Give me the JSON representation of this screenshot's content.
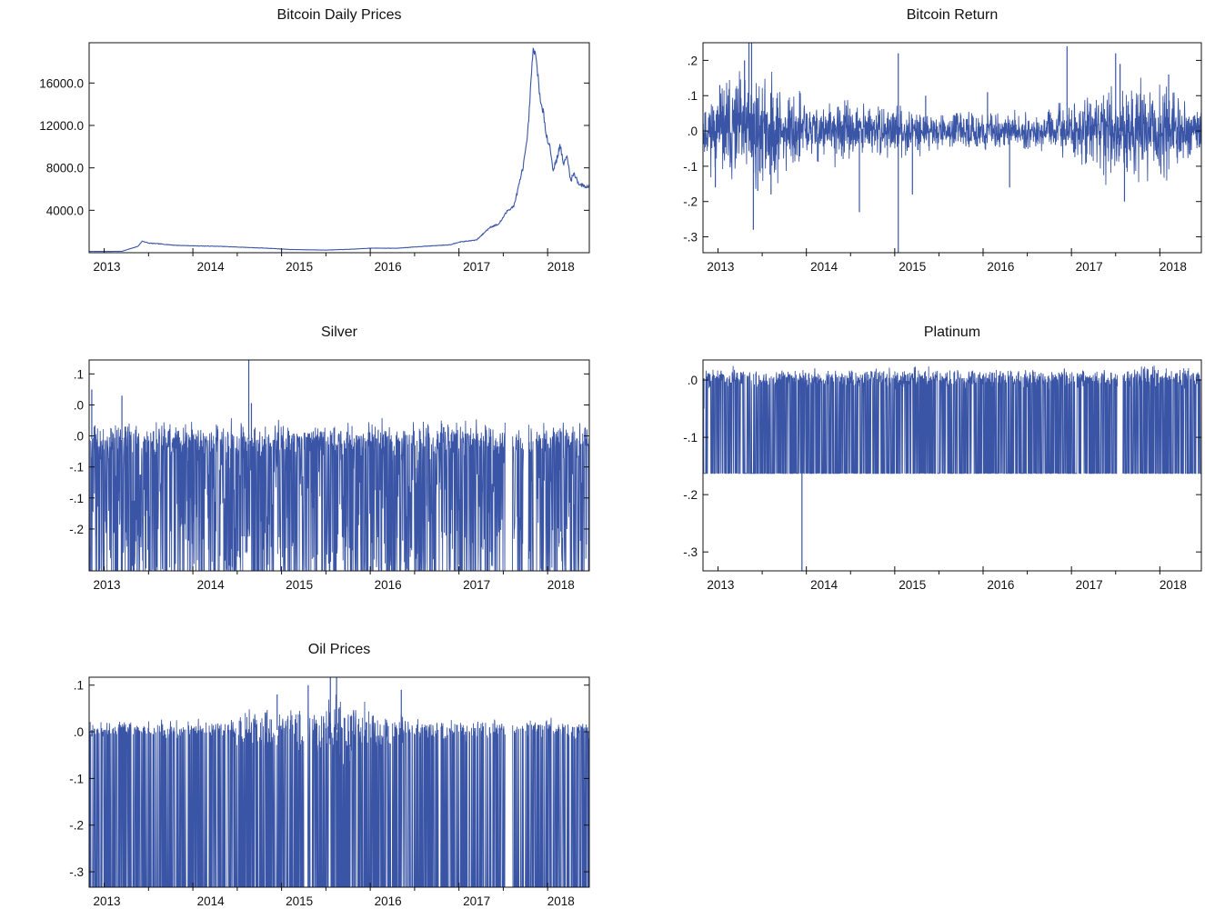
{
  "line_color": "#3a55a6",
  "chart_data": [
    {
      "id": "btc_price",
      "type": "line",
      "title": "Bitcoin Daily Prices",
      "xlabel": "",
      "ylabel": "",
      "x_range": [
        2012.83,
        2018.47
      ],
      "ylim": [
        0,
        19800
      ],
      "y_ticks": [
        4000,
        8000,
        12000,
        16000
      ],
      "y_tick_labels": [
        "4000.0",
        "8000.0",
        "12000.0",
        "16000.0"
      ],
      "x_ticks": [
        2013,
        2014,
        2015,
        2016,
        2017,
        2018
      ],
      "x_tick_labels": [
        "2013",
        "2014",
        "2015",
        "2016",
        "2017",
        "2018"
      ],
      "grid": false,
      "series": [
        {
          "mode": "path",
          "x": [
            2012.83,
            2013.0,
            2013.2,
            2013.38,
            2013.43,
            2013.5,
            2013.6,
            2013.8,
            2014.0,
            2014.3,
            2014.6,
            2014.9,
            2015.1,
            2015.5,
            2015.8,
            2016.0,
            2016.3,
            2016.6,
            2016.9,
            2017.0,
            2017.2,
            2017.35,
            2017.45,
            2017.55,
            2017.62,
            2017.68,
            2017.72,
            2017.77,
            2017.84,
            2017.89,
            2017.92,
            2017.95,
            2017.99,
            2018.03,
            2018.06,
            2018.1,
            2018.14,
            2018.18,
            2018.22,
            2018.26,
            2018.3,
            2018.35,
            2018.4,
            2018.47
          ],
          "y": [
            120,
            125,
            130,
            600,
            1100,
            900,
            850,
            700,
            650,
            600,
            500,
            400,
            300,
            250,
            330,
            430,
            420,
            600,
            750,
            1000,
            1200,
            2400,
            2700,
            4000,
            4400,
            6500,
            8000,
            10500,
            19500,
            17000,
            14000,
            13200,
            11000,
            9800,
            7800,
            8700,
            10200,
            8300,
            9100,
            6800,
            7500,
            6500,
            6300,
            6200
          ]
        }
      ]
    },
    {
      "id": "btc_return",
      "type": "line",
      "title": "Bitcoin Return",
      "xlabel": "",
      "ylabel": "",
      "x_range": [
        2012.83,
        2018.47
      ],
      "ylim": [
        -0.345,
        0.25
      ],
      "y_ticks": [
        0.2,
        0.1,
        0.0,
        -0.1,
        -0.2,
        -0.3
      ],
      "y_tick_labels": [
        ".2",
        ".1",
        ".0",
        "-.1",
        "-.2",
        "-.3"
      ],
      "x_ticks": [
        2013,
        2014,
        2015,
        2016,
        2017,
        2018
      ],
      "x_tick_labels": [
        "2013",
        "2014",
        "2015",
        "2016",
        "2017",
        "2018"
      ],
      "grid": false,
      "series": [
        {
          "mode": "returns",
          "seed": 11,
          "n": 1900,
          "base": 0.0,
          "vol_x": [
            2012.83,
            2013.3,
            2013.7,
            2014.1,
            2014.6,
            2015.1,
            2015.5,
            2016.1,
            2016.6,
            2016.9,
            2017.3,
            2017.7,
            2018.1,
            2018.47
          ],
          "vol": [
            0.035,
            0.08,
            0.06,
            0.04,
            0.035,
            0.03,
            0.02,
            0.025,
            0.02,
            0.03,
            0.05,
            0.065,
            0.055,
            0.03
          ],
          "spikes": [
            [
              2012.97,
              -0.16
            ],
            [
              2013.02,
              0.13
            ],
            [
              2013.3,
              0.2
            ],
            [
              2013.35,
              0.25
            ],
            [
              2013.38,
              0.25
            ],
            [
              2013.4,
              -0.28
            ],
            [
              2013.45,
              -0.17
            ],
            [
              2013.6,
              -0.18
            ],
            [
              2014.6,
              -0.23
            ],
            [
              2015.04,
              -0.35
            ],
            [
              2015.04,
              0.22
            ],
            [
              2015.2,
              -0.18
            ],
            [
              2015.35,
              0.1
            ],
            [
              2016.05,
              0.11
            ],
            [
              2016.3,
              -0.16
            ],
            [
              2016.95,
              0.24
            ],
            [
              2017.5,
              0.22
            ],
            [
              2017.6,
              -0.2
            ],
            [
              2017.55,
              0.19
            ],
            [
              2018.1,
              0.16
            ]
          ]
        }
      ]
    },
    {
      "id": "silver",
      "type": "line",
      "title": "Silver",
      "xlabel": "",
      "ylabel": "",
      "x_range": [
        2012.83,
        2018.47
      ],
      "ylim": [
        -0.2425,
        0.0975
      ],
      "y_ticks": [
        0.075,
        0.025,
        -0.025,
        -0.075,
        -0.125,
        -0.175
      ],
      "y_tick_labels": [
        ".1",
        ".0",
        ".0",
        "-.1",
        "-.1",
        "-.2"
      ],
      "x_ticks": [
        2013,
        2014,
        2015,
        2016,
        2017,
        2018
      ],
      "x_tick_labels": [
        "2013",
        "2014",
        "2015",
        "2016",
        "2017",
        "2018"
      ],
      "grid": false,
      "series": [
        {
          "mode": "returns",
          "seed": 23,
          "n": 1900,
          "base": -0.03,
          "vol_x": [
            2012.83,
            2018.47
          ],
          "vol": [
            0.013,
            0.013
          ],
          "drop_prob": 0.55,
          "drop_floor": -0.2425,
          "drop_floor_prob": 0.35,
          "gaps": [
            [
              2017.52,
              2017.6
            ],
            [
              2017.73,
              2017.78
            ],
            [
              2017.84,
              2017.87
            ]
          ],
          "spikes": [
            [
              2012.86,
              0.05
            ],
            [
              2013.2,
              0.04
            ],
            [
              2014.63,
              0.0975
            ],
            [
              2014.66,
              0.028
            ]
          ]
        }
      ]
    },
    {
      "id": "platinum",
      "type": "line",
      "title": "Platinum",
      "xlabel": "",
      "ylabel": "",
      "x_range": [
        2012.83,
        2018.47
      ],
      "ylim": [
        -0.333,
        0.035
      ],
      "y_ticks": [
        0.0,
        -0.1,
        -0.2,
        -0.3
      ],
      "y_tick_labels": [
        ".0",
        "-.1",
        "-.2",
        "-.3"
      ],
      "x_ticks": [
        2013,
        2014,
        2015,
        2016,
        2017,
        2018
      ],
      "x_tick_labels": [
        "2013",
        "2014",
        "2015",
        "2016",
        "2017",
        "2018"
      ],
      "grid": false,
      "series": [
        {
          "mode": "returns",
          "seed": 37,
          "n": 1900,
          "base": 0.003,
          "vol_x": [
            2012.83,
            2018.47
          ],
          "vol": [
            0.008,
            0.008
          ],
          "drop_prob": 0.45,
          "drop_floor": -0.163,
          "drop_floor_prob": 1.0,
          "gaps": [
            [
              2017.52,
              2017.58
            ]
          ],
          "spikes": [
            [
              2013.95,
              -0.333
            ],
            [
              2012.84,
              -0.05
            ]
          ]
        }
      ]
    },
    {
      "id": "oil",
      "type": "line",
      "title": "Oil Prices",
      "xlabel": "",
      "ylabel": "",
      "x_range": [
        2012.83,
        2018.47
      ],
      "ylim": [
        -0.333,
        0.117
      ],
      "y_ticks": [
        0.1,
        0.0,
        -0.1,
        -0.2,
        -0.3
      ],
      "y_tick_labels": [
        ".1",
        ".0",
        "-.1",
        "-.2",
        "-.3"
      ],
      "x_ticks": [
        2013,
        2014,
        2015,
        2016,
        2017,
        2018
      ],
      "x_tick_labels": [
        "2013",
        "2014",
        "2015",
        "2016",
        "2017",
        "2018"
      ],
      "grid": false,
      "series": [
        {
          "mode": "returns",
          "seed": 51,
          "n": 1900,
          "base": 0.004,
          "vol_x": [
            2012.83,
            2014.4,
            2014.8,
            2015.6,
            2016.2,
            2016.6,
            2018.47
          ],
          "vol": [
            0.008,
            0.01,
            0.025,
            0.03,
            0.02,
            0.01,
            0.009
          ],
          "drop_prob": 0.6,
          "drop_floor": -0.333,
          "drop_floor_prob": 1.0,
          "gaps": [
            [
              2017.52,
              2017.6
            ]
          ],
          "spikes": [
            [
              2015.3,
              0.1
            ],
            [
              2015.55,
              0.117
            ],
            [
              2015.62,
              0.117
            ],
            [
              2016.35,
              0.09
            ],
            [
              2014.95,
              0.08
            ],
            [
              2012.86,
              -0.01
            ]
          ]
        }
      ]
    }
  ]
}
